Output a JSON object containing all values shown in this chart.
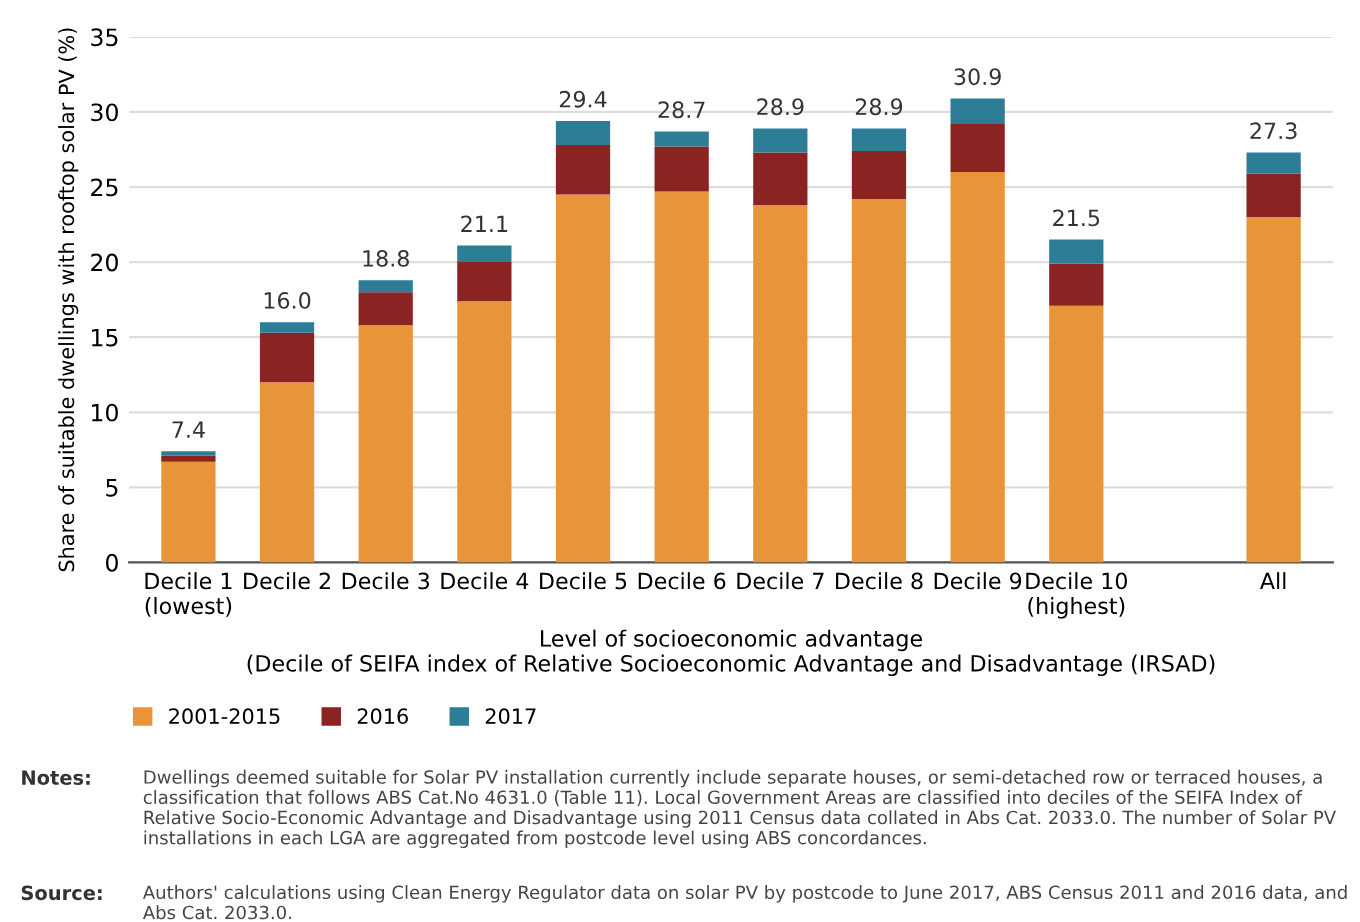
{
  "chart_data": {
    "type": "bar",
    "stacked": true,
    "ylabel": "Share of suitable dwellings with rooftop solar PV (%)",
    "xlabel": "Level of socioeconomic advantage\n(Decile of SEIFA index of Relative Socioeconomic Advantage and Disadvantage (IRSAD)",
    "categories": [
      "Decile 1\n(lowest)",
      "Decile 2",
      "Decile 3",
      "Decile 4",
      "Decile 5",
      "Decile 6",
      "Decile 7",
      "Decile 8",
      "Decile 9",
      "Decile 10\n(highest)",
      null,
      "All"
    ],
    "series": [
      {
        "name": "2001-2015",
        "color": "#e8953a",
        "values": [
          6.7,
          12.0,
          15.8,
          17.4,
          24.5,
          24.7,
          23.8,
          24.2,
          26.0,
          17.1,
          null,
          23.0
        ]
      },
      {
        "name": "2016",
        "color": "#8b2323",
        "values": [
          0.4,
          3.3,
          2.2,
          2.6,
          3.3,
          3.0,
          3.5,
          3.2,
          3.2,
          2.8,
          null,
          2.9
        ]
      },
      {
        "name": "2017",
        "color": "#2e7d96",
        "values": [
          0.3,
          0.7,
          0.8,
          1.1,
          1.6,
          1.0,
          1.6,
          1.5,
          1.7,
          1.6,
          null,
          1.4
        ]
      }
    ],
    "totals": [
      "7.4",
      "16.0",
      "18.8",
      "21.1",
      "29.4",
      "28.7",
      "28.9",
      "28.9",
      "30.9",
      "21.5",
      null,
      "27.3"
    ],
    "ylim": [
      0,
      35
    ],
    "yticks": [
      0,
      5,
      10,
      15,
      20,
      25,
      30,
      35
    ],
    "grid": "y",
    "legend": "bottom left",
    "annotations": [
      "Notes:",
      "Dwellings deemed suitable for Solar PV installation currently include separate houses, or semi-detached row or terraced houses, a classification that follows ABS Cat.No 4631.0 (Table 11). Local Government Areas are classified into deciles of the SEIFA Index of Relative Socio-Economic Advantage and Disadvantage using 2011 Census data collated in Abs Cat. 2033.0. The number of Solar PV installations in each LGA are aggregated from postcode level using ABS concordances.",
      "Source:",
      "Authors' calculations using Clean Energy Regulator data on solar PV by postcode to June 2017, ABS Census 2011 and 2016 data, and Abs Cat. 2033.0."
    ]
  }
}
